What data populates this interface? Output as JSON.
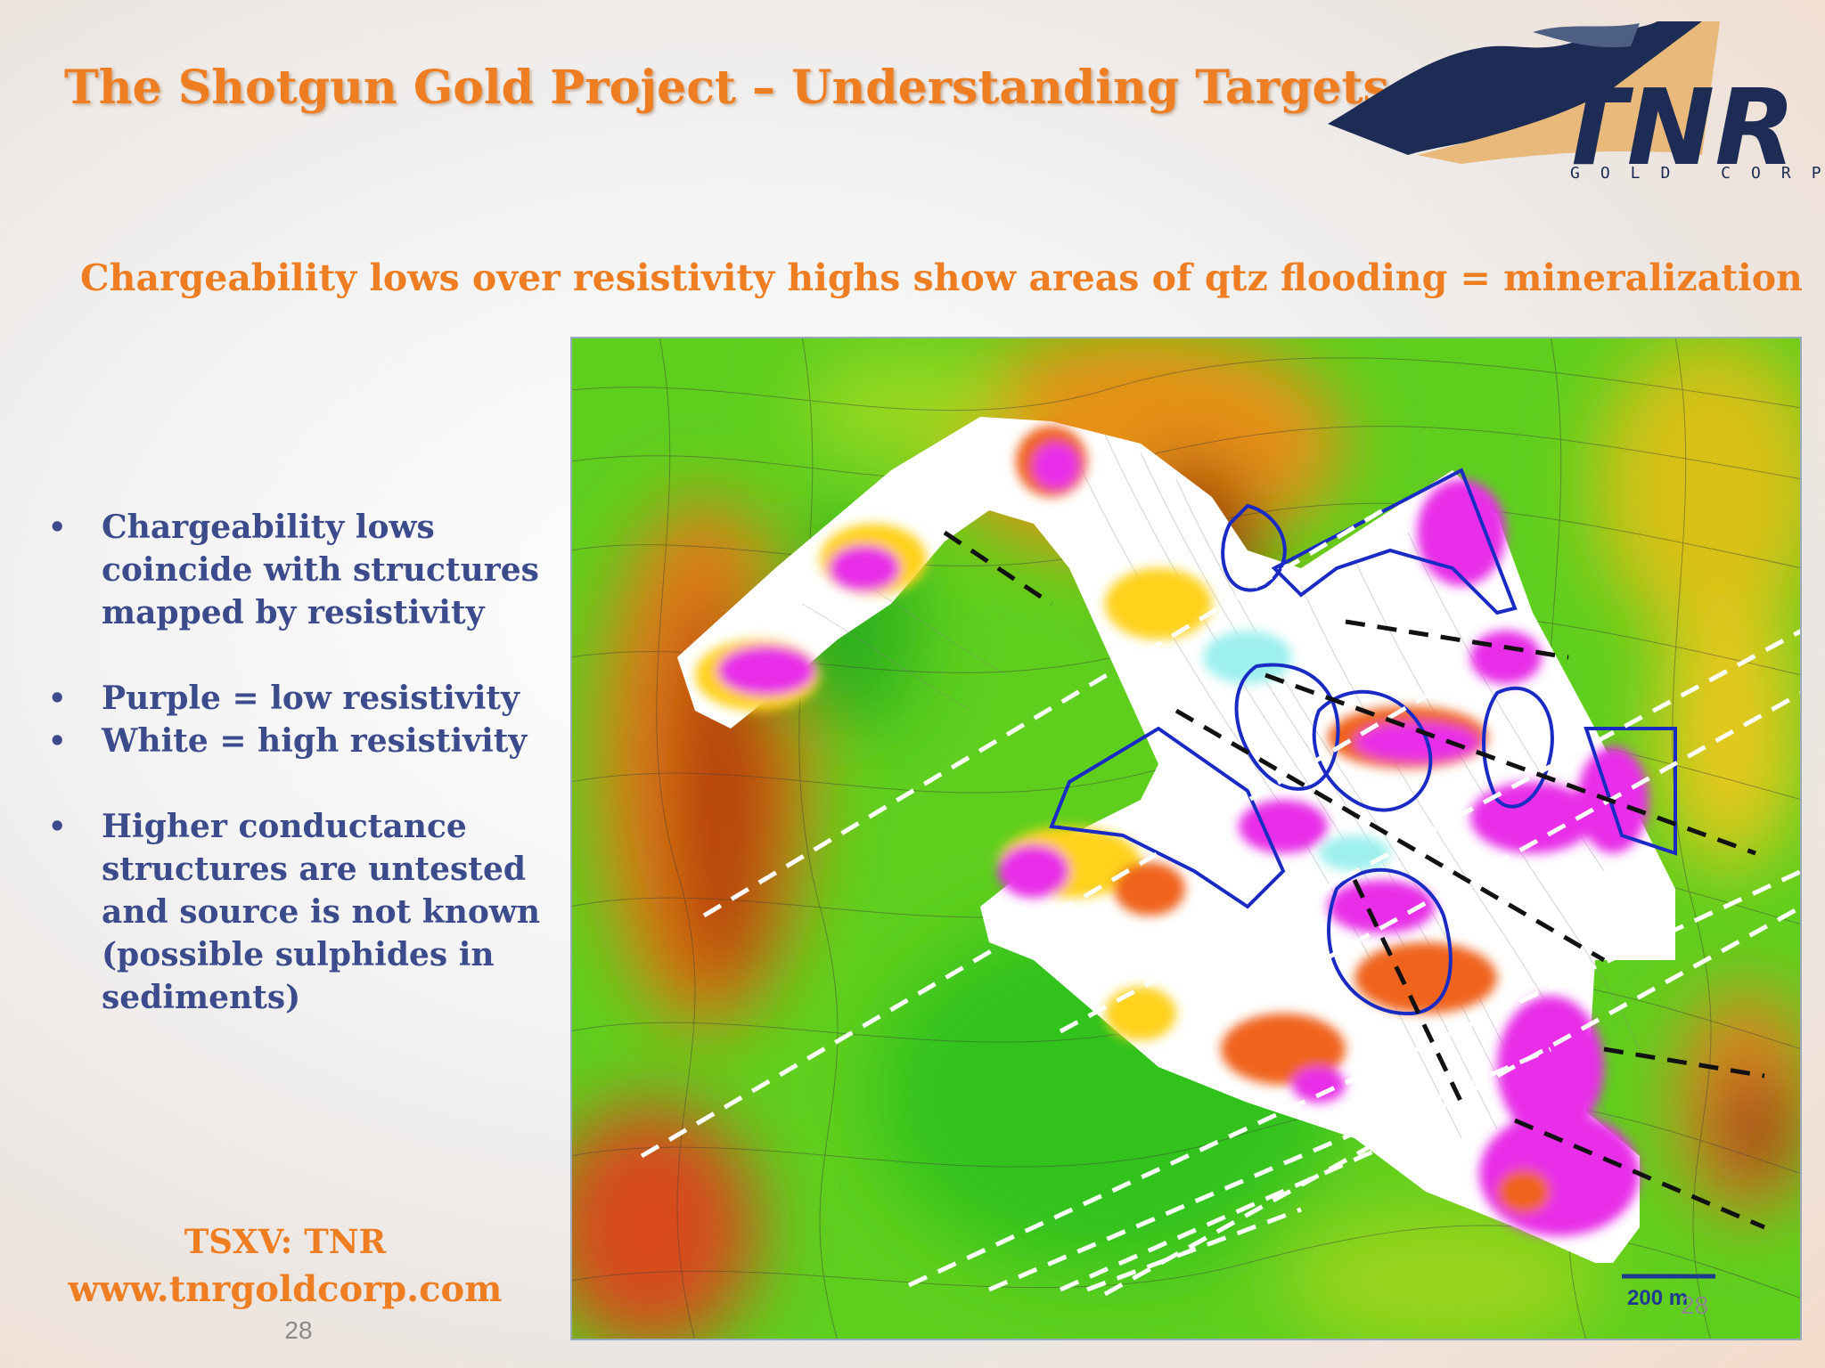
{
  "slide": {
    "title": "The Shotgun Gold Project – Understanding Targets",
    "subtitle": "Chargeability lows over resistivity highs show areas of qtz flooding = mineralization",
    "bullets": [
      "Chargeability lows coincide with structures mapped by resistivity",
      "Purple = low resistivity",
      "White = high resistivity",
      "Higher conductance structures are untested and source is not known (possible sulphides in sediments)"
    ],
    "bullet_marker": "•",
    "ticker": "TSXV: TNR",
    "website": "www.tnrgoldcorp.com",
    "page_number": "28"
  },
  "logo": {
    "name": "TNR",
    "tagline": "GOLD CORP",
    "icon": "mountain-logo-icon"
  },
  "map": {
    "scale_label": "200 m",
    "page_number": "28",
    "colors": {
      "low_resistivity": "#e82ee8",
      "high_resistivity": "#ffffff",
      "survey_outline": "#1a2bc4",
      "structure_white": "#ffffff",
      "structure_black": "#111111"
    }
  },
  "colors": {
    "accent": "#ef7d22",
    "bullet_text": "#3b4b8c",
    "logo_navy": "#1c2c55",
    "logo_tan": "#e8b97a"
  }
}
